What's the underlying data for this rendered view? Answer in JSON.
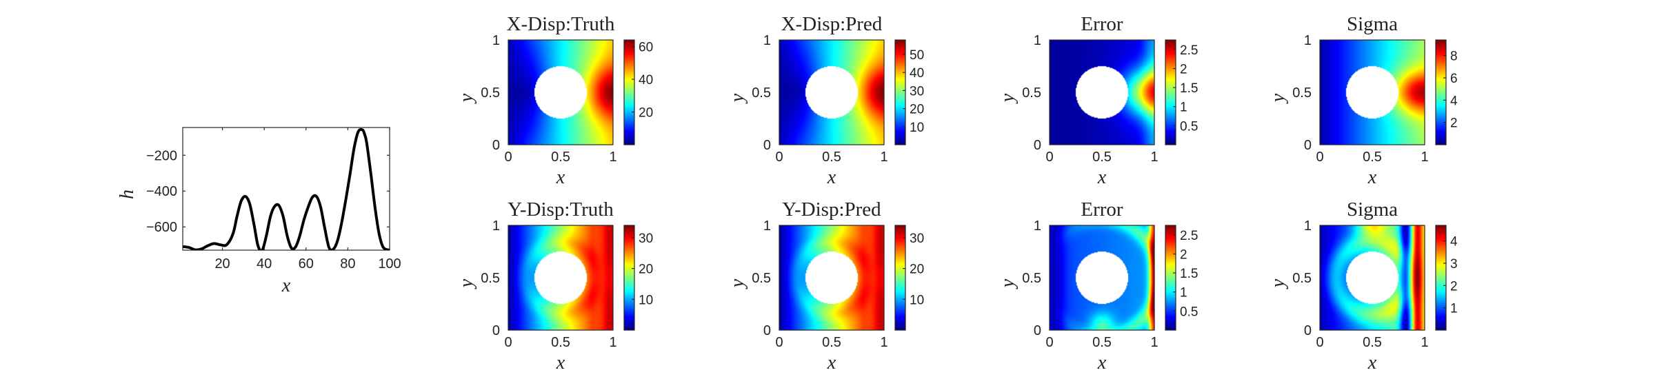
{
  "chart_data": [
    {
      "type": "line",
      "xlabel": "x",
      "ylabel": "h",
      "xlim": [
        1,
        100
      ],
      "ylim": [
        -730,
        -45
      ],
      "xticks": [
        20,
        40,
        60,
        80,
        100
      ],
      "yticks": [
        -200,
        -400,
        -600
      ],
      "line_color": "#000000",
      "x": [
        1,
        4,
        7,
        10,
        13,
        16,
        19,
        22,
        25,
        27,
        29,
        31,
        33,
        35,
        37,
        39,
        41,
        43,
        45,
        47,
        49,
        51,
        53,
        55,
        57,
        59,
        61,
        63,
        65,
        67,
        69,
        71,
        73,
        75,
        77,
        79,
        81,
        83,
        85,
        87,
        88,
        89,
        91,
        93,
        95,
        97,
        100
      ],
      "y": [
        -710,
        -715,
        -728,
        -723,
        -705,
        -693,
        -700,
        -700,
        -640,
        -540,
        -455,
        -430,
        -470,
        -580,
        -705,
        -730,
        -650,
        -540,
        -485,
        -480,
        -540,
        -650,
        -718,
        -712,
        -650,
        -560,
        -490,
        -435,
        -430,
        -490,
        -610,
        -715,
        -725,
        -680,
        -580,
        -450,
        -310,
        -160,
        -68,
        -58,
        -82,
        -130,
        -300,
        -490,
        -640,
        -715,
        -730
      ]
    },
    {
      "type": "heatmap",
      "title": "X-Disp:Truth",
      "xlabel": "x",
      "ylabel": "y",
      "xlim": [
        0,
        1
      ],
      "ylim": [
        0,
        1
      ],
      "field": "x-displacement",
      "colormap": "jet",
      "clim": [
        0,
        64
      ],
      "colorbar_ticks": [
        20,
        40,
        60
      ],
      "hole": {
        "center": [
          0.5,
          0.5
        ],
        "radius": 0.25
      }
    },
    {
      "type": "heatmap",
      "title": "X-Disp:Pred",
      "xlabel": "x",
      "ylabel": "y",
      "xlim": [
        0,
        1
      ],
      "ylim": [
        0,
        1
      ],
      "field": "x-displacement",
      "colormap": "jet",
      "clim": [
        0,
        58
      ],
      "colorbar_ticks": [
        10,
        20,
        30,
        40,
        50
      ],
      "hole": {
        "center": [
          0.5,
          0.5
        ],
        "radius": 0.25
      }
    },
    {
      "type": "heatmap",
      "title": "Error",
      "xlabel": "x",
      "ylabel": "y",
      "xlim": [
        0,
        1
      ],
      "ylim": [
        0,
        1
      ],
      "field": "x-error",
      "colormap": "jet",
      "clim": [
        0,
        2.75
      ],
      "colorbar_ticks": [
        0.5,
        1,
        1.5,
        2,
        2.5
      ],
      "hole": {
        "center": [
          0.5,
          0.5
        ],
        "radius": 0.25
      }
    },
    {
      "type": "heatmap",
      "title": "Sigma",
      "xlabel": "x",
      "ylabel": "y",
      "xlim": [
        0,
        1
      ],
      "ylim": [
        0,
        1
      ],
      "field": "x-sigma",
      "colormap": "jet",
      "clim": [
        0,
        9.4
      ],
      "colorbar_ticks": [
        2,
        4,
        6,
        8
      ],
      "hole": {
        "center": [
          0.5,
          0.5
        ],
        "radius": 0.25
      }
    },
    {
      "type": "heatmap",
      "title": "Y-Disp:Truth",
      "xlabel": "x",
      "ylabel": "y",
      "xlim": [
        0,
        1
      ],
      "ylim": [
        0,
        1
      ],
      "field": "y-displacement",
      "colormap": "jet",
      "clim": [
        0,
        34
      ],
      "colorbar_ticks": [
        10,
        20,
        30
      ],
      "hole": {
        "center": [
          0.5,
          0.5
        ],
        "radius": 0.25
      }
    },
    {
      "type": "heatmap",
      "title": "Y-Disp:Pred",
      "xlabel": "x",
      "ylabel": "y",
      "xlim": [
        0,
        1
      ],
      "ylim": [
        0,
        1
      ],
      "field": "y-displacement",
      "colormap": "jet",
      "clim": [
        0,
        34
      ],
      "colorbar_ticks": [
        10,
        20,
        30
      ],
      "hole": {
        "center": [
          0.5,
          0.5
        ],
        "radius": 0.25
      }
    },
    {
      "type": "heatmap",
      "title": "Error",
      "xlabel": "x",
      "ylabel": "y",
      "xlim": [
        0,
        1
      ],
      "ylim": [
        0,
        1
      ],
      "field": "y-error",
      "colormap": "jet",
      "clim": [
        0,
        2.75
      ],
      "colorbar_ticks": [
        0.5,
        1,
        1.5,
        2,
        2.5
      ],
      "hole": {
        "center": [
          0.5,
          0.5
        ],
        "radius": 0.25
      }
    },
    {
      "type": "heatmap",
      "title": "Sigma",
      "xlabel": "x",
      "ylabel": "y",
      "xlim": [
        0,
        1
      ],
      "ylim": [
        0,
        1
      ],
      "field": "y-sigma",
      "colormap": "jet",
      "clim": [
        0,
        4.7
      ],
      "colorbar_ticks": [
        1,
        2,
        3,
        4
      ],
      "hole": {
        "center": [
          0.5,
          0.5
        ],
        "radius": 0.25
      }
    }
  ]
}
